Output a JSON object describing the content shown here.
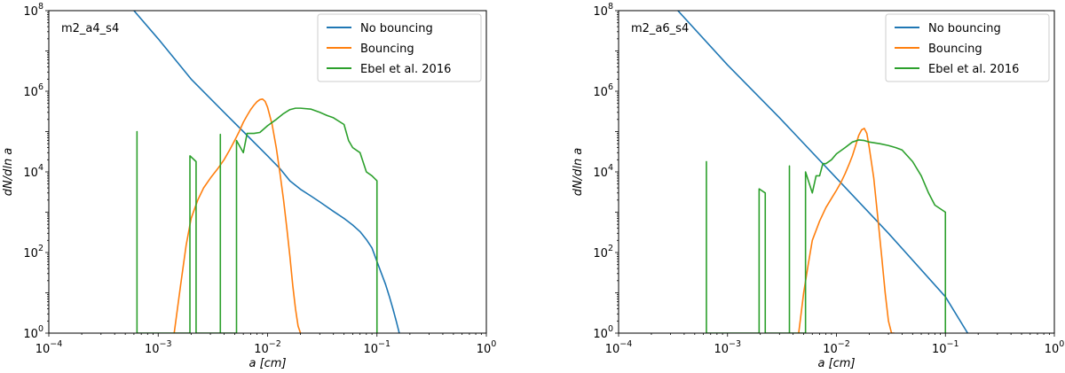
{
  "chart_data": [
    {
      "type": "line",
      "title": "",
      "annotation": "m2_a4_s4",
      "xlabel": "a [cm]",
      "ylabel": "dN/dln a",
      "xscale": "log",
      "yscale": "log",
      "xlim": [
        0.0001,
        1
      ],
      "ylim": [
        1,
        100000000
      ],
      "x_ticks": [
        {
          "value": 0.0001,
          "base": "10",
          "exp": "−4"
        },
        {
          "value": 0.001,
          "base": "10",
          "exp": "−3"
        },
        {
          "value": 0.01,
          "base": "10",
          "exp": "−2"
        },
        {
          "value": 0.1,
          "base": "10",
          "exp": "−1"
        },
        {
          "value": 1,
          "base": "10",
          "exp": "0"
        }
      ],
      "y_ticks": [
        {
          "value": 1,
          "base": "10",
          "exp": "0"
        },
        {
          "value": 100,
          "base": "10",
          "exp": "2"
        },
        {
          "value": 10000,
          "base": "10",
          "exp": "4"
        },
        {
          "value": 1000000,
          "base": "10",
          "exp": "6"
        },
        {
          "value": 100000000,
          "base": "10",
          "exp": "8"
        }
      ],
      "legend_position": "top-right",
      "grid": false,
      "series": [
        {
          "name": "No bouncing",
          "color": "#1f77b4",
          "x": [
            0.0006,
            0.001,
            0.002,
            0.004,
            0.006,
            0.01,
            0.013,
            0.016,
            0.02,
            0.025,
            0.03,
            0.04,
            0.05,
            0.06,
            0.07,
            0.08,
            0.09,
            0.1,
            0.11,
            0.12,
            0.13,
            0.14,
            0.15,
            0.16
          ],
          "y": [
            100000000,
            20000000,
            2000000,
            300000,
            100000,
            25000,
            12000,
            6000,
            3700,
            2500,
            1800,
            1050,
            700,
            480,
            330,
            210,
            130,
            60,
            30,
            16,
            8,
            4,
            2,
            1
          ]
        },
        {
          "name": "Bouncing",
          "color": "#ff7f0e",
          "x": [
            0.0014,
            0.0016,
            0.0018,
            0.002,
            0.0023,
            0.0026,
            0.003,
            0.0035,
            0.004,
            0.0045,
            0.005,
            0.0055,
            0.006,
            0.0065,
            0.007,
            0.0075,
            0.008,
            0.0085,
            0.009,
            0.0095,
            0.01,
            0.011,
            0.012,
            0.013,
            0.014,
            0.015,
            0.016,
            0.017,
            0.018,
            0.019,
            0.02
          ],
          "y": [
            1,
            15,
            150,
            700,
            2000,
            4000,
            7000,
            12000,
            20000,
            35000,
            60000,
            100000,
            170000,
            250000,
            350000,
            450000,
            550000,
            620000,
            640000,
            560000,
            400000,
            150000,
            40000,
            9000,
            2000,
            400,
            80,
            15,
            4,
            1.5,
            1
          ]
        },
        {
          "name": "Ebel et al. 2016",
          "color": "#2ca02c",
          "x": [
            0.00064,
            0.00064,
            0.00064,
            0.00064,
            0.00064,
            0.00064,
            0.00195,
            0.00195,
            0.00222,
            0.00222,
            0.00222,
            0.00222,
            0.0037,
            0.0037,
            0.0037,
            0.0037,
            0.0052,
            0.0052,
            0.0052,
            0.0052,
            0.006,
            0.0065,
            0.0075,
            0.0085,
            0.01,
            0.012,
            0.014,
            0.016,
            0.018,
            0.02,
            0.025,
            0.03,
            0.035,
            0.04,
            0.05,
            0.055,
            0.06,
            0.07,
            0.08,
            0.09,
            0.1,
            0.1
          ],
          "y": [
            1,
            100000,
            1,
            1,
            1,
            1,
            1,
            25000,
            18000,
            1,
            1,
            1,
            1,
            85000,
            1,
            1,
            1,
            60000,
            1,
            60000,
            30000,
            90000,
            90000,
            95000,
            140000,
            200000,
            280000,
            350000,
            380000,
            380000,
            360000,
            300000,
            250000,
            220000,
            150000,
            60000,
            40000,
            30000,
            10000,
            8000,
            6000,
            1
          ]
        }
      ]
    },
    {
      "type": "line",
      "title": "",
      "annotation": "m2_a6_s4",
      "xlabel": "a [cm]",
      "ylabel": "dN/dln a",
      "xscale": "log",
      "yscale": "log",
      "xlim": [
        0.0001,
        1
      ],
      "ylim": [
        1,
        100000000
      ],
      "x_ticks": [
        {
          "value": 0.0001,
          "base": "10",
          "exp": "−4"
        },
        {
          "value": 0.001,
          "base": "10",
          "exp": "−3"
        },
        {
          "value": 0.01,
          "base": "10",
          "exp": "−2"
        },
        {
          "value": 0.1,
          "base": "10",
          "exp": "−1"
        },
        {
          "value": 1,
          "base": "10",
          "exp": "0"
        }
      ],
      "y_ticks": [
        {
          "value": 1,
          "base": "10",
          "exp": "0"
        },
        {
          "value": 100,
          "base": "10",
          "exp": "2"
        },
        {
          "value": 10000,
          "base": "10",
          "exp": "4"
        },
        {
          "value": 1000000,
          "base": "10",
          "exp": "6"
        },
        {
          "value": 100000000,
          "base": "10",
          "exp": "8"
        }
      ],
      "legend_position": "top-right",
      "grid": false,
      "series": [
        {
          "name": "No bouncing",
          "color": "#1f77b4",
          "x": [
            0.00035,
            0.001,
            0.003,
            0.01,
            0.03,
            0.1,
            0.16
          ],
          "y": [
            100000000,
            4500000,
            220000,
            7000,
            300,
            8,
            1
          ]
        },
        {
          "name": "Bouncing",
          "color": "#ff7f0e",
          "x": [
            0.0045,
            0.005,
            0.0055,
            0.006,
            0.007,
            0.008,
            0.009,
            0.01,
            0.011,
            0.012,
            0.013,
            0.014,
            0.015,
            0.016,
            0.017,
            0.018,
            0.019,
            0.02,
            0.022,
            0.024,
            0.026,
            0.028,
            0.03,
            0.032,
            0.034
          ],
          "y": [
            1,
            10,
            50,
            200,
            600,
            1300,
            2200,
            3500,
            5500,
            9000,
            15000,
            25000,
            45000,
            80000,
            110000,
            120000,
            90000,
            40000,
            7000,
            700,
            80,
            10,
            2,
            1,
            1
          ]
        },
        {
          "name": "Ebel et al. 2016",
          "color": "#2ca02c",
          "x": [
            0.00064,
            0.00064,
            0.00064,
            0.00064,
            0.00064,
            0.00064,
            0.00195,
            0.00195,
            0.00222,
            0.00222,
            0.00222,
            0.00222,
            0.0037,
            0.0037,
            0.0037,
            0.0037,
            0.0052,
            0.0052,
            0.0052,
            0.0052,
            0.006,
            0.0065,
            0.007,
            0.0075,
            0.008,
            0.009,
            0.01,
            0.012,
            0.014,
            0.016,
            0.018,
            0.02,
            0.025,
            0.03,
            0.035,
            0.04,
            0.05,
            0.06,
            0.07,
            0.08,
            0.1,
            0.1
          ],
          "y": [
            1,
            18000,
            1,
            1,
            1,
            1,
            1,
            3800,
            3000,
            1,
            1,
            1,
            1,
            14000,
            1,
            1,
            1,
            10000,
            1,
            10000,
            3000,
            8000,
            8000,
            16000,
            16000,
            20000,
            28000,
            40000,
            55000,
            62000,
            60000,
            55000,
            50000,
            45000,
            40000,
            35000,
            18000,
            8000,
            3000,
            1500,
            1000,
            1
          ]
        }
      ]
    }
  ]
}
